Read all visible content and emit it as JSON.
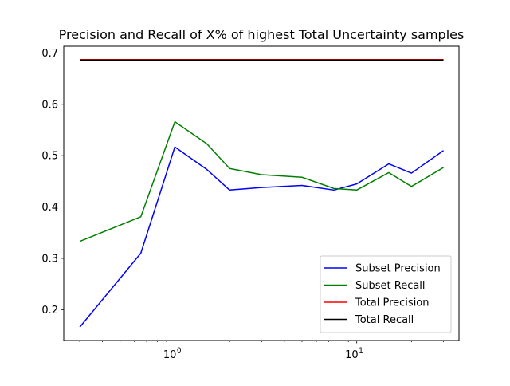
{
  "chart_data": {
    "type": "line",
    "title": "Precision and Recall of X% of highest Total Uncertainty samples",
    "xlabel": "",
    "ylabel": "",
    "xscale": "log",
    "xlim": [
      0.245,
      36.5
    ],
    "ylim": [
      0.14,
      0.713
    ],
    "grid": false,
    "legend_position": "lower-right",
    "x_ticks": [
      {
        "value": 1,
        "base": "10",
        "exp": "0"
      },
      {
        "value": 10,
        "base": "10",
        "exp": "1"
      }
    ],
    "y_ticks": [
      {
        "value": 0.2,
        "label": "0.2"
      },
      {
        "value": 0.3,
        "label": "0.3"
      },
      {
        "value": 0.4,
        "label": "0.4"
      },
      {
        "value": 0.5,
        "label": "0.5"
      },
      {
        "value": 0.6,
        "label": "0.6"
      },
      {
        "value": 0.7,
        "label": "0.7"
      }
    ],
    "series": [
      {
        "name": "Subset Precision",
        "color": "#0000ff",
        "x": [
          0.3,
          0.65,
          1,
          1.5,
          2,
          3,
          5,
          7.5,
          10,
          15,
          20,
          30
        ],
        "y": [
          0.166,
          0.31,
          0.517,
          0.473,
          0.433,
          0.438,
          0.442,
          0.433,
          0.445,
          0.484,
          0.466,
          0.51
        ]
      },
      {
        "name": "Subset Recall",
        "color": "#008000",
        "x": [
          0.3,
          0.65,
          1,
          1.5,
          2,
          3,
          5,
          7.5,
          10,
          15,
          20,
          30
        ],
        "y": [
          0.333,
          0.381,
          0.566,
          0.523,
          0.475,
          0.463,
          0.458,
          0.436,
          0.433,
          0.467,
          0.44,
          0.477
        ]
      },
      {
        "name": "Total Precision",
        "color": "#ff0000",
        "x": [
          0.3,
          30
        ],
        "y": [
          0.687,
          0.687
        ]
      },
      {
        "name": "Total Recall",
        "color": "#000000",
        "x": [
          0.3,
          30
        ],
        "y": [
          0.686,
          0.686
        ]
      }
    ]
  }
}
